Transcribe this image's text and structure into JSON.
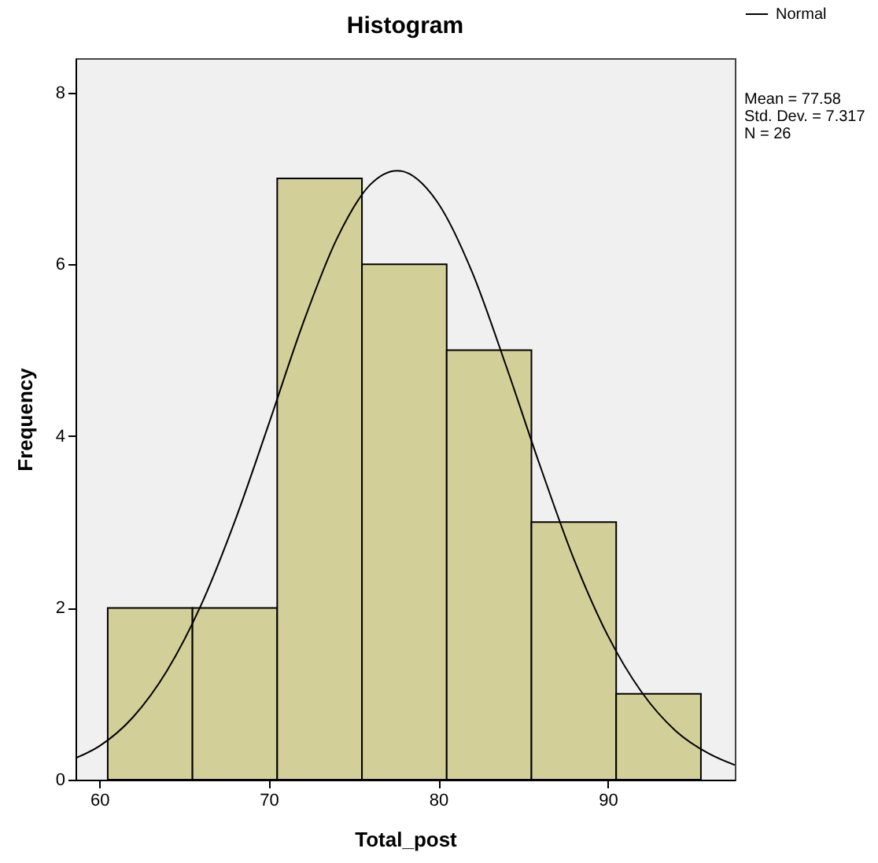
{
  "chart_data": {
    "type": "histogram",
    "title": "Histogram",
    "xlabel": "Total_post",
    "ylabel": "Frequency",
    "bins": [
      60.5,
      65.5,
      70.5,
      75.5,
      80.5,
      85.5,
      90.5,
      95.5
    ],
    "series": [
      {
        "color": "#d3cf98",
        "values": [
          2,
          2,
          7,
          6,
          5,
          3,
          1
        ]
      },
      {
        "type": "line",
        "name": "Normal",
        "color": "#000000",
        "x": [
          58.6,
          60,
          62,
          64,
          66,
          68,
          70,
          72,
          74,
          76,
          77.58,
          80,
          82,
          84,
          86,
          88,
          90,
          92,
          94,
          96,
          97.5
        ],
        "values": [
          0.25,
          0.39,
          0.73,
          1.27,
          2.03,
          3.01,
          4.14,
          5.3,
          6.29,
          6.93,
          7.09,
          6.71,
          5.91,
          4.82,
          3.66,
          2.57,
          1.68,
          1.02,
          0.57,
          0.3,
          0.17
        ]
      }
    ],
    "xlim": [
      58.6,
      97.5
    ],
    "xticks": [
      60,
      70,
      80,
      90
    ],
    "ylim": [
      0,
      8.4
    ],
    "yticks": [
      0,
      2,
      4,
      6,
      8
    ],
    "legend": "top right",
    "annotations": [
      "Mean = 77.58",
      "Std. Dev. = 7.317",
      "N = 26"
    ]
  }
}
